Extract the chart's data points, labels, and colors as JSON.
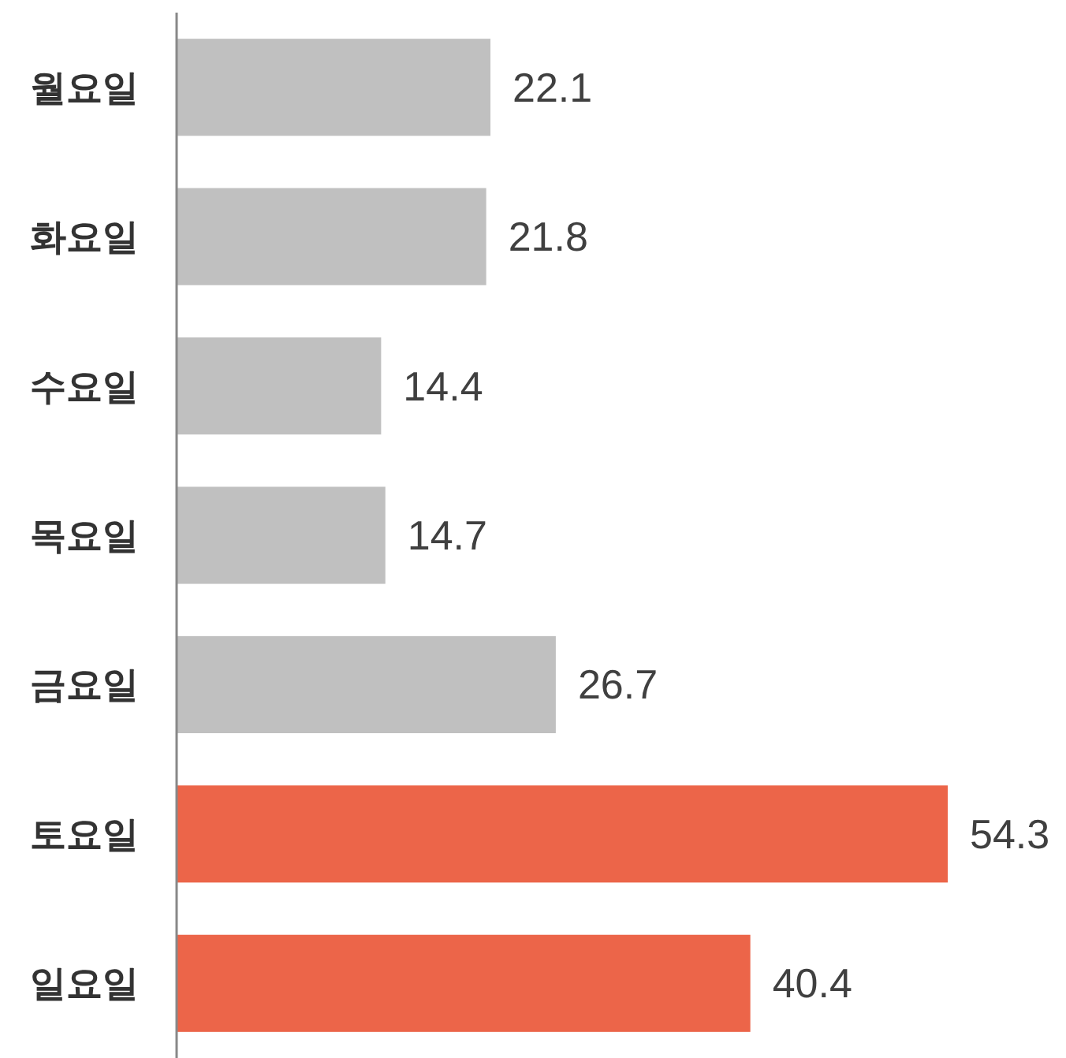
{
  "chart_data": {
    "type": "bar",
    "orientation": "horizontal",
    "categories": [
      "월요일",
      "화요일",
      "수요일",
      "목요일",
      "금요일",
      "토요일",
      "일요일"
    ],
    "values": [
      22.1,
      21.8,
      14.4,
      14.7,
      26.7,
      54.3,
      40.4
    ],
    "colors": [
      "#c0c0c0",
      "#c0c0c0",
      "#c0c0c0",
      "#c0c0c0",
      "#c0c0c0",
      "#ec6549",
      "#ec6549"
    ],
    "data_labels": true
  }
}
